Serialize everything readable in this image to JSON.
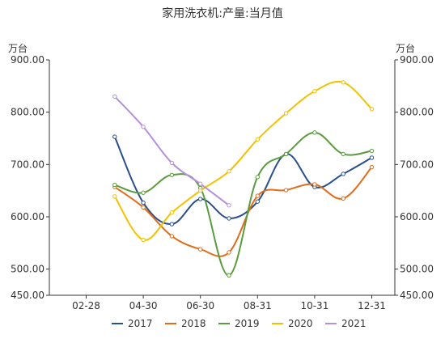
{
  "chart_data": {
    "type": "line",
    "title": "家用洗衣机:产量:当月值",
    "unit_left": "万台",
    "unit_right": "万台",
    "x_ticks": [
      "02-28",
      "04-30",
      "06-30",
      "08-31",
      "10-31",
      "12-31"
    ],
    "y_ticks": [
      "450.00",
      "500.00",
      "600.00",
      "700.00",
      "800.00",
      "900.00"
    ],
    "ylim": [
      450,
      900
    ],
    "grid": false,
    "legend_position": "bottom",
    "series": [
      {
        "name": "2017",
        "color": "#2a4f8f",
        "x": [
          "03-31",
          "04-30",
          "05-31",
          "06-30",
          "07-31",
          "08-31",
          "09-30",
          "10-31",
          "11-30",
          "12-31"
        ],
        "values": [
          753,
          627,
          586,
          634,
          597,
          629,
          720,
          657,
          682,
          713
        ]
      },
      {
        "name": "2018",
        "color": "#e06c1a",
        "x": [
          "03-31",
          "04-30",
          "05-31",
          "06-30",
          "07-31",
          "08-31",
          "09-30",
          "10-31",
          "11-30",
          "12-31"
        ],
        "values": [
          657,
          618,
          563,
          538,
          532,
          640,
          651,
          662,
          635,
          695
        ]
      },
      {
        "name": "2019",
        "color": "#5b9c3f",
        "x": [
          "03-31",
          "04-30",
          "05-31",
          "06-30",
          "07-31",
          "08-31",
          "09-30",
          "10-31",
          "11-30",
          "12-31"
        ],
        "values": [
          661,
          646,
          680,
          655,
          488,
          676,
          720,
          761,
          720,
          726
        ]
      },
      {
        "name": "2020",
        "color": "#f2c200",
        "x": [
          "03-31",
          "04-30",
          "05-31",
          "06-30",
          "07-31",
          "08-31",
          "09-30",
          "10-31",
          "11-30",
          "12-31"
        ],
        "values": [
          639,
          556,
          608,
          650,
          687,
          748,
          798,
          840,
          857,
          806
        ]
      },
      {
        "name": "2021",
        "color": "#b58fd9",
        "x": [
          "03-31",
          "04-30",
          "05-31",
          "06-30",
          "07-31"
        ],
        "values": [
          830,
          772,
          703,
          663,
          622
        ]
      }
    ]
  }
}
